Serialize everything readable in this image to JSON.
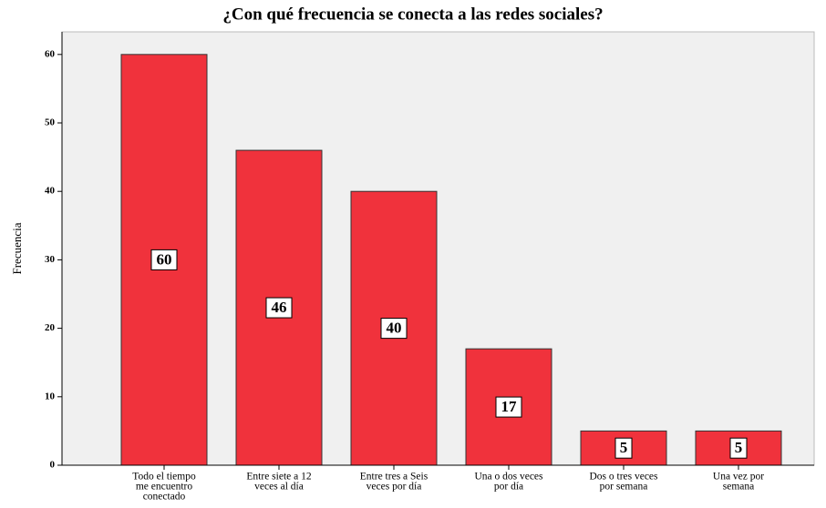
{
  "chart_data": {
    "type": "bar",
    "title": "¿Con qué frecuencia se conecta a las redes sociales?",
    "y_label": "Frecuencia",
    "categories": [
      [
        "Todo el tiempo",
        "me encuentro",
        "conectado"
      ],
      [
        "Entre siete a 12",
        "veces al día"
      ],
      [
        "Entre tres a Seis",
        "veces por día"
      ],
      [
        "Una  o dos veces",
        "por día"
      ],
      [
        "Dos o tres veces",
        "por semana"
      ],
      [
        "Una vez por",
        "semana"
      ]
    ],
    "values": [
      60,
      46,
      40,
      17,
      5,
      5
    ],
    "color": "#f0323c",
    "ylim": [
      0,
      63.3
    ],
    "yticks": [
      0,
      10,
      20,
      30,
      40,
      50,
      60
    ],
    "grid": false
  }
}
